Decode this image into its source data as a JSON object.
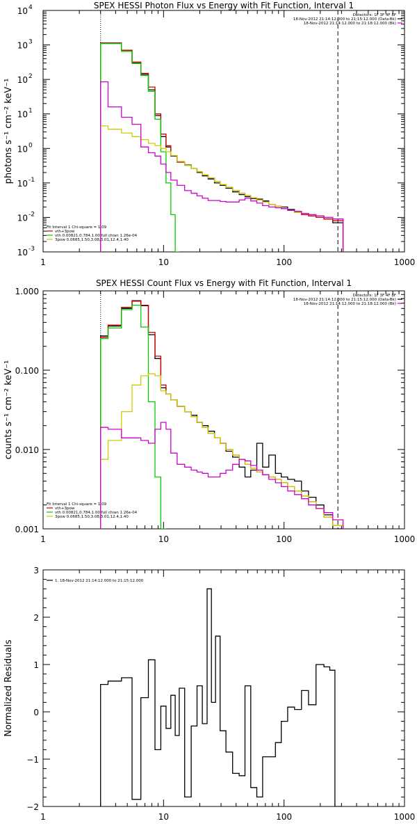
{
  "chart_data": [
    {
      "type": "line",
      "title": "SPEX HESSI Photon Flux vs Energy with Fit Function, Interval 1",
      "ylabel": "photons s⁻¹ cm⁻² keV⁻¹",
      "xscale": "log",
      "yscale": "log",
      "xlim": [
        1,
        1000
      ],
      "ylim": [
        0.001,
        10000
      ],
      "xticks": [
        {
          "value": 1,
          "label": "1"
        },
        {
          "value": 10,
          "label": "10"
        },
        {
          "value": 100,
          "label": "100"
        },
        {
          "value": 1000,
          "label": "1000"
        }
      ],
      "yticks": [
        {
          "value": 0.001,
          "base": "10",
          "exp": "-3"
        },
        {
          "value": 0.01,
          "base": "10",
          "exp": "-2"
        },
        {
          "value": 0.1,
          "base": "10",
          "exp": "-1"
        },
        {
          "value": 1,
          "base": "10",
          "exp": "0"
        },
        {
          "value": 10,
          "base": "10",
          "exp": "1"
        },
        {
          "value": 100,
          "base": "10",
          "exp": "2"
        },
        {
          "value": 1000,
          "base": "10",
          "exp": "3"
        },
        {
          "value": 10000,
          "base": "10",
          "exp": "4"
        }
      ],
      "vlines": [
        {
          "x": 3,
          "style": "dotted"
        },
        {
          "x": 280,
          "style": "dashed"
        }
      ],
      "header": [
        {
          "text": "Detectors: 1F 3F 4F 8F",
          "color": ""
        },
        {
          "text": "18-Nov-2012 21:14:12.000 to 21:15:12.000 (Data-Bk)",
          "color": "#000000"
        },
        {
          "text": "18-Nov-2012 21:14:12.000 to 21:18:12.000 (Bk)",
          "color": "#cc00cc"
        }
      ],
      "legend": [
        {
          "text": "Fit Interval 1    Chi-square = 1.09",
          "color": ""
        },
        {
          "text": "vth+3pow",
          "color": "#cc0000"
        },
        {
          "text": "vth 0.00821,0.784,1.00   full chian 1.26e-04",
          "color": "#00cc00"
        },
        {
          "text": "3pow 0.0685,1.50,3.08,3.01,12.4,1.40",
          "color": "#cccc00"
        }
      ],
      "series": [
        {
          "name": "Data-Bk",
          "color": "#000000",
          "x": [
            3,
            4,
            5,
            6,
            7,
            8,
            9,
            10,
            11,
            12,
            14,
            16,
            18,
            20,
            22,
            25,
            28,
            31,
            35,
            40,
            45,
            50,
            56,
            63,
            70,
            80,
            90,
            100,
            115,
            130,
            150,
            170,
            200,
            230,
            280
          ],
          "y": [
            1100,
            1100,
            700,
            300,
            140,
            50,
            9,
            2.2,
            1.1,
            0.6,
            0.4,
            0.33,
            0.26,
            0.2,
            0.16,
            0.13,
            0.1,
            0.085,
            0.07,
            0.055,
            0.046,
            0.04,
            0.035,
            0.034,
            0.03,
            0.024,
            0.021,
            0.02,
            0.017,
            0.015,
            0.013,
            0.012,
            0.011,
            0.009,
            0.007
          ]
        },
        {
          "name": "vth+3pow",
          "color": "#cc0000",
          "x": [
            3,
            4,
            5,
            6,
            7,
            8,
            9,
            10,
            11,
            12,
            14,
            16,
            18,
            20,
            22,
            25,
            28,
            31,
            35,
            40,
            45,
            50,
            56,
            63,
            70,
            80,
            90,
            100,
            115,
            130,
            150,
            170,
            200,
            230,
            280
          ],
          "y": [
            1150,
            1150,
            700,
            320,
            150,
            60,
            10,
            2.6,
            1.2,
            0.62,
            0.4,
            0.32,
            0.26,
            0.21,
            0.17,
            0.14,
            0.11,
            0.09,
            0.074,
            0.06,
            0.05,
            0.043,
            0.037,
            0.032,
            0.028,
            0.024,
            0.021,
            0.018,
            0.016,
            0.014,
            0.012,
            0.011,
            0.01,
            0.009,
            0.008
          ]
        },
        {
          "name": "vth",
          "color": "#00cc00",
          "x": [
            3,
            4,
            5,
            6,
            7,
            8,
            9,
            10,
            11,
            12,
            13
          ],
          "y": [
            1100,
            1100,
            650,
            290,
            130,
            45,
            7,
            0.8,
            0.1,
            0.012,
            0.001
          ]
        },
        {
          "name": "3pow",
          "color": "#cccc00",
          "x": [
            3,
            4,
            5,
            6,
            7,
            8,
            9,
            10,
            11,
            12,
            14,
            16,
            18,
            20,
            22,
            25,
            28,
            31,
            35,
            40,
            45,
            50,
            56,
            63,
            70,
            80,
            90,
            100,
            115,
            130,
            150,
            170,
            200,
            230,
            280
          ],
          "y": [
            4.5,
            3.6,
            2.8,
            2.2,
            1.8,
            1.4,
            1.2,
            1.0,
            0.8,
            0.62,
            0.42,
            0.32,
            0.26,
            0.21,
            0.17,
            0.14,
            0.11,
            0.09,
            0.074,
            0.06,
            0.05,
            0.043,
            0.037,
            0.032,
            0.028,
            0.024,
            0.021,
            0.018,
            0.016,
            0.014,
            0.013,
            0.012,
            0.011,
            0.01,
            0.009
          ]
        },
        {
          "name": "Bk",
          "color": "#cc00cc",
          "x": [
            3,
            4,
            5,
            6,
            7,
            8,
            9,
            10,
            11,
            12,
            14,
            16,
            18,
            20,
            22,
            25,
            28,
            31,
            35,
            40,
            45,
            50,
            56,
            63,
            70,
            80,
            90,
            100,
            115,
            130,
            150,
            170,
            200,
            230,
            280
          ],
          "y": [
            85,
            16,
            8,
            5,
            1.1,
            0.75,
            0.6,
            0.35,
            0.2,
            0.12,
            0.085,
            0.06,
            0.05,
            0.042,
            0.036,
            0.031,
            0.031,
            0.029,
            0.028,
            0.028,
            0.032,
            0.036,
            0.03,
            0.026,
            0.022,
            0.02,
            0.019,
            0.018,
            0.016,
            0.015,
            0.013,
            0.012,
            0.011,
            0.01,
            0.009
          ]
        }
      ]
    },
    {
      "type": "line",
      "title": "SPEX HESSI Count Flux vs Energy with Fit Function, Interval 1",
      "ylabel": "counts s⁻¹ cm⁻² keV⁻¹",
      "xscale": "log",
      "yscale": "log",
      "xlim": [
        1,
        1000
      ],
      "ylim": [
        0.001,
        1.0
      ],
      "xticks": [
        {
          "value": 1,
          "label": "1"
        },
        {
          "value": 10,
          "label": "10"
        },
        {
          "value": 100,
          "label": "100"
        },
        {
          "value": 1000,
          "label": "1000"
        }
      ],
      "yticks": [
        {
          "value": 0.001,
          "label": "0.001"
        },
        {
          "value": 0.01,
          "label": "0.010"
        },
        {
          "value": 0.1,
          "label": "0.100"
        },
        {
          "value": 1.0,
          "label": "1.000"
        }
      ],
      "vlines": [
        {
          "x": 3,
          "style": "dotted"
        },
        {
          "x": 280,
          "style": "dashed"
        }
      ],
      "header": [
        {
          "text": "Detectors: 1F 3F 4F 8F",
          "color": ""
        },
        {
          "text": "18-Nov-2012 21:14:12.000 to 21:15:12.000 (Data-Bk)",
          "color": "#000000"
        },
        {
          "text": "18-Nov-2012 21:14:12.000 to 21:18:12.000 (Bk)",
          "color": "#cc00cc"
        }
      ],
      "legend": [
        {
          "text": "Fit Interval 1    Chi-square = 1.09",
          "color": ""
        },
        {
          "text": "vth+3pow",
          "color": "#cc0000"
        },
        {
          "text": "vth 0.00821,0.784,1.00   full chian 1.26e-04",
          "color": "#00cc00"
        },
        {
          "text": "3pow 0.0685,1.50,3.08,3.01,12.4,1.40",
          "color": "#cccc00"
        }
      ],
      "series": [
        {
          "name": "Data-Bk",
          "color": "#000000",
          "x": [
            3,
            4,
            5,
            6,
            7,
            8,
            9,
            10,
            11,
            12,
            14,
            16,
            18,
            20,
            22,
            25,
            28,
            31,
            35,
            40,
            45,
            50,
            56,
            63,
            70,
            80,
            90,
            100,
            115,
            130,
            150,
            170,
            200,
            230,
            280
          ],
          "y": [
            0.27,
            0.36,
            0.6,
            0.75,
            0.65,
            0.28,
            0.14,
            0.06,
            0.05,
            0.042,
            0.035,
            0.03,
            0.027,
            0.022,
            0.02,
            0.017,
            0.014,
            0.012,
            0.0095,
            0.008,
            0.006,
            0.0045,
            0.0055,
            0.012,
            0.006,
            0.0085,
            0.005,
            0.0045,
            0.0042,
            0.004,
            0.003,
            0.0025,
            0.002,
            0.0015,
            0.001
          ]
        },
        {
          "name": "vth+3pow",
          "color": "#cc0000",
          "x": [
            3,
            4,
            5,
            6,
            7,
            8,
            9,
            10,
            11,
            12,
            14,
            16,
            18,
            20,
            22,
            25,
            28,
            31,
            35,
            40,
            45,
            50,
            56,
            63,
            70,
            80,
            90,
            100,
            115,
            130,
            150,
            170,
            200,
            230,
            280
          ],
          "y": [
            0.26,
            0.37,
            0.62,
            0.74,
            0.66,
            0.3,
            0.15,
            0.065,
            0.05,
            0.042,
            0.035,
            0.03,
            0.026,
            0.022,
            0.019,
            0.016,
            0.014,
            0.012,
            0.01,
            0.0085,
            0.0075,
            0.0065,
            0.0058,
            0.0052,
            0.0048,
            0.0045,
            0.0042,
            0.0038,
            0.0034,
            0.003,
            0.0026,
            0.0022,
            0.0018,
            0.0014,
            0.0011
          ]
        },
        {
          "name": "vth",
          "color": "#00cc00",
          "x": [
            3,
            4,
            5,
            6,
            7,
            8,
            9,
            10
          ],
          "y": [
            0.25,
            0.34,
            0.58,
            0.66,
            0.35,
            0.04,
            0.0045,
            0.001
          ]
        },
        {
          "name": "3pow",
          "color": "#cccc00",
          "x": [
            3,
            4,
            5,
            6,
            7,
            8,
            9,
            10,
            11,
            12,
            14,
            16,
            18,
            20,
            22,
            25,
            28,
            31,
            35,
            40,
            45,
            50,
            56,
            63,
            70,
            80,
            90,
            100,
            115,
            130,
            150,
            170,
            200,
            230,
            280
          ],
          "y": [
            0.0075,
            0.013,
            0.03,
            0.065,
            0.085,
            0.09,
            0.085,
            0.055,
            0.05,
            0.042,
            0.035,
            0.03,
            0.026,
            0.022,
            0.019,
            0.016,
            0.014,
            0.012,
            0.01,
            0.0085,
            0.0075,
            0.0065,
            0.0058,
            0.0052,
            0.0048,
            0.0045,
            0.0042,
            0.0038,
            0.0034,
            0.003,
            0.0026,
            0.0022,
            0.0018,
            0.0014,
            0.0011
          ]
        },
        {
          "name": "Bk",
          "color": "#cc00cc",
          "x": [
            3,
            4,
            5,
            6,
            7,
            8,
            9,
            10,
            11,
            12,
            14,
            16,
            18,
            20,
            22,
            25,
            28,
            31,
            35,
            40,
            45,
            50,
            56,
            63,
            70,
            80,
            90,
            100,
            115,
            130,
            150,
            170,
            200,
            230,
            280
          ],
          "y": [
            0.019,
            0.018,
            0.014,
            0.014,
            0.013,
            0.012,
            0.018,
            0.022,
            0.018,
            0.009,
            0.0065,
            0.006,
            0.0055,
            0.0052,
            0.005,
            0.0045,
            0.0045,
            0.005,
            0.0055,
            0.0065,
            0.0075,
            0.0072,
            0.0063,
            0.0055,
            0.0048,
            0.0042,
            0.0038,
            0.0034,
            0.003,
            0.0027,
            0.0024,
            0.002,
            0.0018,
            0.0016,
            0.0013
          ]
        }
      ]
    },
    {
      "type": "line",
      "title": "",
      "ylabel": "Normalized Residuals",
      "xscale": "log",
      "yscale": "linear",
      "xlim": [
        1,
        1000
      ],
      "ylim": [
        -2,
        3
      ],
      "xticks": [
        {
          "value": 1,
          "label": "1"
        },
        {
          "value": 10,
          "label": "10"
        },
        {
          "value": 100,
          "label": "100"
        },
        {
          "value": 1000,
          "label": "1000"
        }
      ],
      "yticks": [
        {
          "value": -2,
          "label": "−2"
        },
        {
          "value": -1,
          "label": "−1"
        },
        {
          "value": 0,
          "label": "0"
        },
        {
          "value": 1,
          "label": "1"
        },
        {
          "value": 2,
          "label": "2"
        },
        {
          "value": 3,
          "label": "3"
        }
      ],
      "vlines": [],
      "header": [],
      "legend": [
        {
          "text": "1. 18-Nov-2012 21:14:12.000 to 21:15:12.000",
          "color": "#000000"
        }
      ],
      "series": [
        {
          "name": "",
          "color": "#000000",
          "x": [
            3,
            4,
            5,
            6,
            7,
            8,
            9,
            10,
            11,
            12,
            13,
            14,
            16,
            18,
            20,
            22,
            24,
            26,
            28,
            31,
            35,
            40,
            45,
            50,
            56,
            63,
            70,
            80,
            90,
            100,
            115,
            130,
            150,
            170,
            200,
            230,
            250,
            280
          ],
          "y": [
            0.58,
            0.65,
            0.72,
            -1.85,
            0.3,
            1.1,
            -0.8,
            0.12,
            -0.35,
            0.35,
            -0.5,
            0.5,
            -1.8,
            -0.3,
            0.55,
            -0.25,
            2.6,
            0.2,
            1.6,
            -0.4,
            -0.85,
            -1.3,
            -1.35,
            0.55,
            -1.6,
            -1.8,
            -0.95,
            -0.95,
            -0.65,
            -0.2,
            0.1,
            0.05,
            0.45,
            0.15,
            1.0,
            0.95,
            0.88,
            -2.0
          ]
        }
      ]
    }
  ]
}
